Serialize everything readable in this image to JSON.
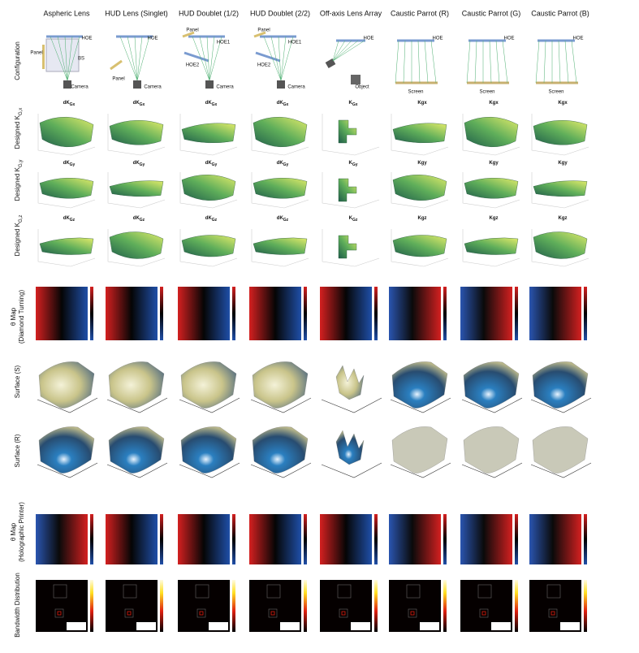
{
  "columns": [
    "Aspheric Lens",
    "HUD Lens (Singlet)",
    "HUD Doublet (1/2)",
    "HUD Doublet (2/2)",
    "Off-axis Lens Array",
    "Caustic Parrot (R)",
    "Caustic Parrot (G)",
    "Caustic Parrot (B)"
  ],
  "rows": [
    {
      "lines": [
        "Configuration"
      ]
    },
    {
      "lines": [
        "Designed K"
      ],
      "sub": "G,x"
    },
    {
      "lines": [
        "Designed K"
      ],
      "sub": "G,y"
    },
    {
      "lines": [
        "Designed K"
      ],
      "sub": "G,z"
    },
    {
      "lines": [
        "θ Map",
        "(Diamond Turning)"
      ]
    },
    {
      "lines": [
        "Surface (S)"
      ]
    },
    {
      "lines": [
        "Surface (R)"
      ]
    },
    {
      "lines": [
        "θ Map",
        "(Holographic Printer)"
      ]
    },
    {
      "lines": [
        "Bandwidth Distribution"
      ]
    }
  ],
  "configuration": [
    [
      "Panel",
      "HOE",
      "BS",
      "Camera"
    ],
    [
      "HOE",
      "Panel",
      "Camera"
    ],
    [
      "Panel",
      "HOE1",
      "HOE2",
      "Camera"
    ],
    [
      "Panel",
      "HOE1",
      "HOE2",
      "Camera"
    ],
    [
      "HOE",
      "Object"
    ],
    [
      "HOE",
      "Screen"
    ],
    [
      "HOE",
      "Screen"
    ],
    [
      "HOE",
      "Screen"
    ]
  ],
  "kg_titles": [
    [
      {
        "text": "dK",
        "sub": "Gx"
      },
      {
        "text": "dK",
        "sub": "Gx"
      },
      {
        "text": "dK",
        "sub": "Gx"
      },
      {
        "text": "dK",
        "sub": "Gx"
      },
      {
        "text": "K",
        "sub": "Gx"
      },
      {
        "text": "Kgx",
        "sub": ""
      },
      {
        "text": "Kgx",
        "sub": ""
      },
      {
        "text": "Kgx",
        "sub": ""
      }
    ],
    [
      {
        "text": "dK",
        "sub": "Gy"
      },
      {
        "text": "dK",
        "sub": "Gy"
      },
      {
        "text": "dK",
        "sub": "Gy"
      },
      {
        "text": "dK",
        "sub": "Gy"
      },
      {
        "text": "K",
        "sub": "Gy"
      },
      {
        "text": "Kgy",
        "sub": ""
      },
      {
        "text": "Kgy",
        "sub": ""
      },
      {
        "text": "Kgy",
        "sub": ""
      }
    ],
    [
      {
        "text": "dK",
        "sub": "Gz"
      },
      {
        "text": "dK",
        "sub": "Gz"
      },
      {
        "text": "dK",
        "sub": "Gz"
      },
      {
        "text": "dK",
        "sub": "Gz"
      },
      {
        "text": "K",
        "sub": "Gz"
      },
      {
        "text": "Kgz",
        "sub": ""
      },
      {
        "text": "Kgz",
        "sub": ""
      },
      {
        "text": "Kgz",
        "sub": ""
      }
    ]
  ]
}
